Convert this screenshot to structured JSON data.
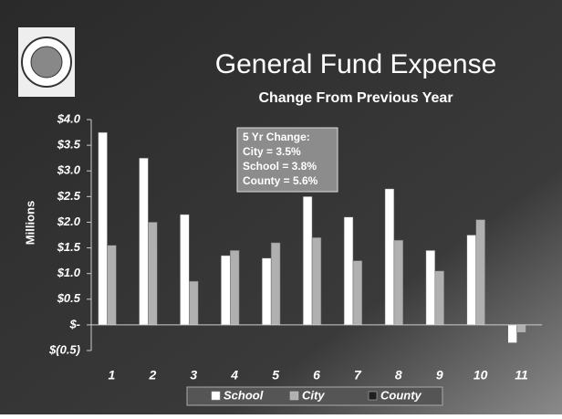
{
  "chart_data": {
    "type": "bar",
    "title": "General Fund Expense",
    "subtitle": "Change From Previous Year",
    "y_label": "Millions",
    "annotation": [
      "5 Yr Change:",
      "City = 3.5%",
      "School = 3.8%",
      "County = 5.6%"
    ],
    "categories": [
      "1",
      "2",
      "3",
      "4",
      "5",
      "6",
      "7",
      "8",
      "9",
      "10",
      "11"
    ],
    "series": [
      {
        "name": "School",
        "color": "#ffffff",
        "values": [
          3.75,
          3.25,
          2.15,
          1.35,
          1.3,
          2.5,
          2.1,
          2.65,
          1.45,
          1.75,
          -0.35
        ]
      },
      {
        "name": "City",
        "color": "#b0b0b0",
        "values": [
          1.55,
          2.0,
          0.85,
          1.45,
          1.6,
          1.7,
          1.25,
          1.65,
          1.05,
          2.05,
          -0.15
        ]
      },
      {
        "name": "County",
        "color": "#202020",
        "values": [
          null,
          null,
          null,
          null,
          null,
          null,
          null,
          null,
          null,
          null,
          null
        ]
      }
    ],
    "ylim": [
      -0.5,
      4.0
    ],
    "yticks": [
      {
        "value": -0.5,
        "label": "$(0.5)"
      },
      {
        "value": 0,
        "label": "$-"
      },
      {
        "value": 0.5,
        "label": "$0.5"
      },
      {
        "value": 1.0,
        "label": "$1.0"
      },
      {
        "value": 1.5,
        "label": "$1.5"
      },
      {
        "value": 2.0,
        "label": "$2.0"
      },
      {
        "value": 2.5,
        "label": "$2.5"
      },
      {
        "value": 3.0,
        "label": "$3.0"
      },
      {
        "value": 3.5,
        "label": "$3.5"
      },
      {
        "value": 4.0,
        "label": "$4.0"
      }
    ]
  }
}
